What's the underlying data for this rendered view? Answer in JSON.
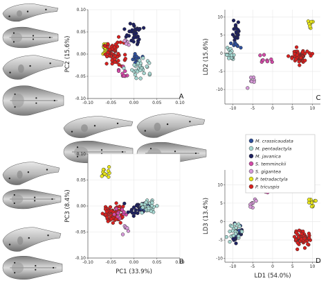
{
  "colors": {
    "M. crassicaudata": "#2e4f9a",
    "M. pentadactyla": "#a7d8d2",
    "M. javanica": "#1d2060",
    "S. temminckii": "#d44aa8",
    "S. gigantea": "#d79ad9",
    "P. tetradactyla": "#e8e61a",
    "P. tricuspis": "#d8201e"
  },
  "legend": [
    "M. crassicaudata",
    "M. pentadactyla",
    "M. javanica",
    "S. temminckii",
    "S. gigantea",
    "P. tetradactyla",
    "P. tricuspis"
  ],
  "chart_data": [
    {
      "panel": "A",
      "type": "scatter",
      "xlabel": "",
      "ylabel": "PC2 (15.6%)",
      "xlim": [
        -0.1,
        0.1
      ],
      "ylim": [
        -0.1,
        0.1
      ],
      "xticks": [
        "-0.10",
        "-0.05",
        "0.00",
        "0.05",
        "0.10"
      ],
      "yticks": [
        "-0.10",
        "-0.05",
        "0.00",
        "0.05",
        "0.10"
      ],
      "groups": [
        {
          "species": "P. tetradactyla",
          "n": 12,
          "center": [
            -0.062,
            0.011
          ],
          "spread": [
            0.004,
            0.007
          ]
        },
        {
          "species": "P. tricuspis",
          "n": 60,
          "center": [
            -0.044,
            0.0
          ],
          "spread": [
            0.011,
            0.013
          ]
        },
        {
          "species": "S. gigantea",
          "n": 6,
          "center": [
            -0.017,
            0.027
          ],
          "spread": [
            0.003,
            0.004
          ]
        },
        {
          "species": "S. temminckii",
          "n": 9,
          "center": [
            -0.022,
            -0.047
          ],
          "spread": [
            0.006,
            0.009
          ]
        },
        {
          "species": "M. javanica",
          "n": 35,
          "center": [
            0.0,
            0.045
          ],
          "spread": [
            0.008,
            0.012
          ]
        },
        {
          "species": "M. crassicaudata",
          "n": 12,
          "center": [
            0.008,
            -0.009
          ],
          "spread": [
            0.006,
            0.006
          ]
        },
        {
          "species": "M. pentadactyla",
          "n": 30,
          "center": [
            0.017,
            -0.03
          ],
          "spread": [
            0.012,
            0.012
          ]
        }
      ]
    },
    {
      "panel": "B",
      "type": "scatter",
      "xlabel": "PC1 (33.9%)",
      "ylabel": "PC3 (8.4%)",
      "xlim": [
        -0.1,
        0.1
      ],
      "ylim": [
        -0.1,
        0.1
      ],
      "xticks": [
        "-0.10",
        "-0.05",
        "0.00",
        "0.05",
        "0.10"
      ],
      "yticks": [
        "-0.10",
        "-0.05",
        "0.00",
        "0.05",
        "0.10"
      ],
      "groups": [
        {
          "species": "P. tetradactyla",
          "n": 12,
          "center": [
            -0.061,
            0.063
          ],
          "spread": [
            0.005,
            0.006
          ]
        },
        {
          "species": "P. tricuspis",
          "n": 60,
          "center": [
            -0.046,
            -0.013
          ],
          "spread": [
            0.011,
            0.01
          ]
        },
        {
          "species": "S. temminckii",
          "n": 10,
          "center": [
            -0.031,
            -0.014
          ],
          "spread": [
            0.006,
            0.006
          ]
        },
        {
          "species": "S. gigantea",
          "n": 6,
          "center": [
            -0.018,
            -0.045
          ],
          "spread": [
            0.005,
            0.006
          ]
        },
        {
          "species": "M. javanica",
          "n": 30,
          "center": [
            0.012,
            -0.005
          ],
          "spread": [
            0.012,
            0.006
          ]
        },
        {
          "species": "M. crassicaudata",
          "n": 10,
          "center": [
            0.025,
            -0.001
          ],
          "spread": [
            0.005,
            0.004
          ]
        },
        {
          "species": "M. pentadactyla",
          "n": 30,
          "center": [
            0.03,
            -0.001
          ],
          "spread": [
            0.009,
            0.006
          ]
        }
      ]
    },
    {
      "panel": "C",
      "type": "scatter",
      "xlabel": "",
      "ylabel": "LD2 (15.6%)",
      "xlim": [
        -12,
        12
      ],
      "ylim": [
        -14,
        12
      ],
      "xticks": [
        "-10",
        "-5",
        "0",
        "5",
        "10"
      ],
      "yticks": [
        "-10",
        "-5",
        "0",
        "5",
        "10"
      ],
      "groups": [
        {
          "species": "M. javanica",
          "n": 22,
          "center": [
            -9.2,
            5.5
          ],
          "spread": [
            0.5,
            1.3
          ]
        },
        {
          "species": "M. crassicaudata",
          "n": 8,
          "center": [
            -9.3,
            2.2
          ],
          "spread": [
            0.5,
            0.6
          ]
        },
        {
          "species": "M. pentadactyla",
          "n": 22,
          "center": [
            -10.5,
            -0.3
          ],
          "spread": [
            0.7,
            1.1
          ]
        },
        {
          "species": "S. temminckii",
          "n": 9,
          "center": [
            -2.3,
            -1.6
          ],
          "spread": [
            0.8,
            0.7
          ]
        },
        {
          "species": "S. gigantea",
          "n": 7,
          "center": [
            -5.3,
            -8.0
          ],
          "spread": [
            0.4,
            1.2
          ]
        },
        {
          "species": "P. tetradactyla",
          "n": 10,
          "center": [
            9.5,
            8.5
          ],
          "spread": [
            0.5,
            0.6
          ]
        },
        {
          "species": "P. tricuspis",
          "n": 60,
          "center": [
            6.5,
            -1.0
          ],
          "spread": [
            1.2,
            0.9
          ]
        }
      ]
    },
    {
      "panel": "D",
      "type": "scatter",
      "xlabel": "LD1 (54.0%)",
      "ylabel": "LD3 (13.4%)",
      "xlim": [
        -12,
        12
      ],
      "ylim": [
        -11,
        14
      ],
      "xticks": [
        "-10",
        "-5",
        "0",
        "5",
        "10"
      ],
      "yticks": [
        "-10",
        "-5",
        "0",
        "5",
        "10"
      ],
      "groups": [
        {
          "species": "M. javanica",
          "n": 20,
          "center": [
            -8.8,
            -3.2
          ],
          "spread": [
            0.8,
            1.2
          ]
        },
        {
          "species": "M. crassicaudata",
          "n": 8,
          "center": [
            -8.4,
            -3.0
          ],
          "spread": [
            0.6,
            0.9
          ]
        },
        {
          "species": "M. pentadactyla",
          "n": 22,
          "center": [
            -9.8,
            -2.8
          ],
          "spread": [
            0.8,
            1.1
          ]
        },
        {
          "species": "S. temminckii",
          "n": 9,
          "center": [
            -1.7,
            8.8
          ],
          "spread": [
            0.8,
            0.9
          ]
        },
        {
          "species": "S. gigantea",
          "n": 8,
          "center": [
            -5.0,
            5.0
          ],
          "spread": [
            0.5,
            1.0
          ]
        },
        {
          "species": "P. tetradactyla",
          "n": 11,
          "center": [
            10.0,
            5.3
          ],
          "spread": [
            0.6,
            0.9
          ]
        },
        {
          "species": "P. tricuspis",
          "n": 55,
          "center": [
            7.5,
            -4.5
          ],
          "spread": [
            1.1,
            1.0
          ]
        }
      ]
    }
  ]
}
